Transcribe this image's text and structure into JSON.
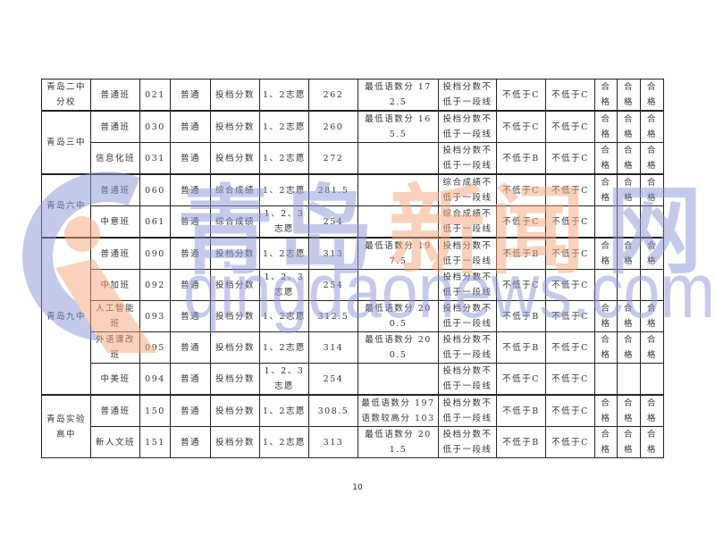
{
  "table": {
    "groups": [
      {
        "school": "青岛二中分校",
        "rows": [
          [
            "普通班",
            "021",
            "普通",
            "投档分数",
            "1、2志愿",
            "262",
            "最低语数分 172.5",
            "投档分数不低于一段线",
            "不低于C",
            "不低于C",
            "合格",
            "合格",
            "合格"
          ]
        ]
      },
      {
        "school": "青岛三中",
        "rows": [
          [
            "普通班",
            "030",
            "普通",
            "投档分数",
            "1、2志愿",
            "260",
            "最低语数分 165.5",
            "投档分数不低于一段线",
            "不低于C",
            "不低于C",
            "合格",
            "合格",
            "合格"
          ],
          [
            "信息化班",
            "031",
            "普通",
            "投档分数",
            "1、2志愿",
            "272",
            "",
            "投档分数不低于一段线",
            "不低于B",
            "不低于C",
            "合格",
            "合格",
            "合格"
          ]
        ]
      },
      {
        "school": "青岛六中",
        "rows": [
          [
            "普通班",
            "060",
            "普通",
            "综合成绩",
            "1、2志愿",
            "281.5",
            "",
            "综合成绩不低于一段线",
            "不低于C",
            "不低于C",
            "合格",
            "合格",
            "合格"
          ],
          [
            "中意班",
            "061",
            "普通",
            "综合成绩",
            "1、2、3志愿",
            "254",
            "",
            "综合成绩不低于一段线",
            "不低于C",
            "不低于C",
            "",
            "",
            ""
          ]
        ]
      },
      {
        "school": "青岛九中",
        "rows": [
          [
            "普通班",
            "090",
            "普通",
            "投档分数",
            "1、2志愿",
            "313",
            "最低语数分 197.5",
            "投档分数不低于一段线",
            "不低于B",
            "不低于C",
            "合格",
            "合格",
            "合格"
          ],
          [
            "中加班",
            "092",
            "普通",
            "投档分数",
            "1、2、3志愿",
            "254",
            "",
            "投档分数不低于一段线",
            "不低于C",
            "不低于C",
            "",
            "",
            ""
          ],
          [
            "人工智能班",
            "093",
            "普通",
            "投档分数",
            "1、2志愿",
            "312.5",
            "最低语数分 200.5",
            "投档分数不低于一段线",
            "不低于B",
            "不低于C",
            "合格",
            "合格",
            "合格"
          ],
          [
            "外语课改班",
            "095",
            "普通",
            "投档分数",
            "1、2志愿",
            "314",
            "最低语数分 200.5",
            "投档分数不低于一段线",
            "不低于B",
            "不低于C",
            "合格",
            "合格",
            "合格"
          ],
          [
            "中美班",
            "094",
            "普通",
            "投档分数",
            "1、2、3志愿",
            "254",
            "",
            "投档分数不低于一段线",
            "不低于C",
            "不低于C",
            "",
            "",
            ""
          ]
        ]
      },
      {
        "school": "青岛实验高中",
        "rows": [
          [
            "普通班",
            "150",
            "普通",
            "投档分数",
            "1、2志愿",
            "308.5",
            "最低语数分 197 语数较高分 103",
            "投档分数不低于一段线",
            "不低于B",
            "不低于C",
            "合格",
            "合格",
            "合格"
          ],
          [
            "新人文班",
            "151",
            "普通",
            "投档分数",
            "1、2志愿",
            "313",
            "最低语数分 201.5",
            "投档分数不低于一段线",
            "不低于B",
            "不低于C",
            "合格",
            "合格",
            "合格"
          ]
        ]
      }
    ]
  },
  "watermark": {
    "title": "青岛新闻网",
    "url": "qingdaonews.com",
    "blue": "#8f97d6",
    "orange": "#f7a77a"
  },
  "page_number": "10"
}
